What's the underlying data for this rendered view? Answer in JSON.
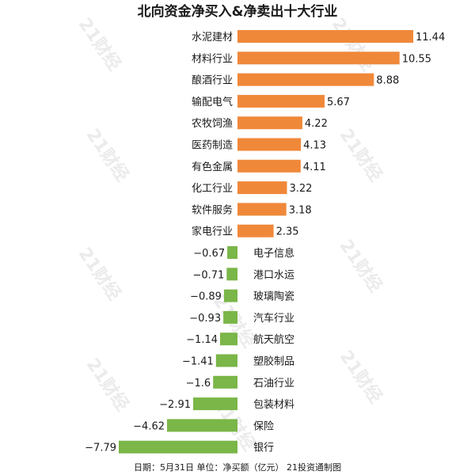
{
  "chart_data": {
    "type": "bar",
    "orientation": "horizontal",
    "title": "北向资金净买入&净卖出十大行业",
    "categories": [
      "水泥建材",
      "材料行业",
      "酿酒行业",
      "输配电气",
      "农牧饲渔",
      "医药制造",
      "有色金属",
      "化工行业",
      "软件服务",
      "家电行业",
      "电子信息",
      "港口水运",
      "玻璃陶瓷",
      "汽车行业",
      "航天航空",
      "塑胶制品",
      "石油行业",
      "包装材料",
      "保险",
      "银行"
    ],
    "values": [
      11.44,
      10.55,
      8.88,
      5.67,
      4.22,
      4.13,
      4.11,
      3.22,
      3.18,
      2.35,
      -0.67,
      -0.71,
      -0.89,
      -0.93,
      -1.14,
      -1.41,
      -1.6,
      -2.91,
      -4.62,
      -7.79
    ],
    "value_labels": [
      "11.44",
      "10.55",
      "8.88",
      "5.67",
      "4.22",
      "4.13",
      "4.11",
      "3.22",
      "3.18",
      "2.35",
      "−0.67",
      "−0.71",
      "−0.89",
      "−0.93",
      "−1.14",
      "−1.41",
      "−1.6",
      "−2.91",
      "−4.62",
      "−7.79"
    ],
    "xlim": [
      -7.79,
      11.44
    ],
    "grid": false,
    "colors": {
      "positive": "#f0883a",
      "negative": "#7ab648"
    },
    "footer": "日期：5月31日 单位：净买额（亿元） 21投资通制图",
    "watermark": "21财经"
  }
}
